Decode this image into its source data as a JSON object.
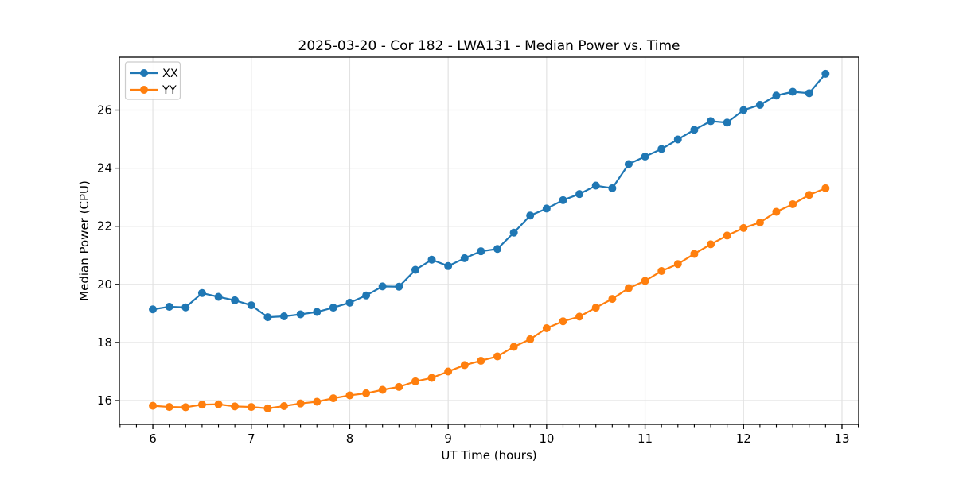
{
  "chart_data": {
    "type": "line",
    "title": "2025-03-20 - Cor 182 - LWA131 - Median Power vs. Time",
    "xlabel": "UT Time (hours)",
    "ylabel": "Median Power (CPU)",
    "xlim": [
      5.66,
      13.17
    ],
    "ylim": [
      15.18,
      27.82
    ],
    "x_major_ticks": [
      6,
      7,
      8,
      9,
      10,
      11,
      12,
      13
    ],
    "y_major_ticks": [
      16,
      18,
      20,
      22,
      24,
      26
    ],
    "x_minor_ticks_per_hour": 6,
    "grid": "major-only",
    "grid_color": "#e2e2e2",
    "spine_color": "#000000",
    "legend": {
      "position": "upper-left",
      "labels": [
        "XX",
        "YY"
      ]
    },
    "x": [
      6.0,
      6.167,
      6.333,
      6.5,
      6.667,
      6.833,
      7.0,
      7.167,
      7.333,
      7.5,
      7.667,
      7.833,
      8.0,
      8.167,
      8.333,
      8.5,
      8.667,
      8.833,
      9.0,
      9.167,
      9.333,
      9.5,
      9.667,
      9.833,
      10.0,
      10.167,
      10.333,
      10.5,
      10.667,
      10.833,
      11.0,
      11.167,
      11.333,
      11.5,
      11.667,
      11.833,
      12.0,
      12.167,
      12.333,
      12.5,
      12.667,
      12.833
    ],
    "series": [
      {
        "name": "XX",
        "color": "#1f77b4",
        "marker": "circle",
        "values": [
          19.14,
          19.23,
          19.21,
          19.7,
          19.57,
          19.45,
          19.28,
          18.87,
          18.9,
          18.97,
          19.05,
          19.2,
          19.37,
          19.62,
          19.93,
          19.92,
          20.5,
          20.85,
          20.63,
          20.9,
          21.14,
          21.22,
          21.78,
          22.37,
          22.61,
          22.9,
          23.11,
          23.4,
          23.31,
          24.14,
          24.4,
          24.66,
          24.99,
          25.32,
          25.62,
          25.57,
          26.0,
          26.18,
          26.5,
          26.63,
          26.58,
          27.25
        ]
      },
      {
        "name": "YY",
        "color": "#ff7f0e",
        "marker": "circle",
        "values": [
          15.82,
          15.78,
          15.77,
          15.86,
          15.87,
          15.8,
          15.78,
          15.73,
          15.81,
          15.9,
          15.96,
          16.08,
          16.18,
          16.25,
          16.37,
          16.47,
          16.66,
          16.78,
          17.0,
          17.22,
          17.37,
          17.52,
          17.85,
          18.11,
          18.49,
          18.73,
          18.89,
          19.2,
          19.5,
          19.87,
          20.12,
          20.46,
          20.7,
          21.05,
          21.38,
          21.68,
          21.94,
          22.13,
          22.5,
          22.76,
          23.08,
          23.31
        ]
      }
    ]
  }
}
